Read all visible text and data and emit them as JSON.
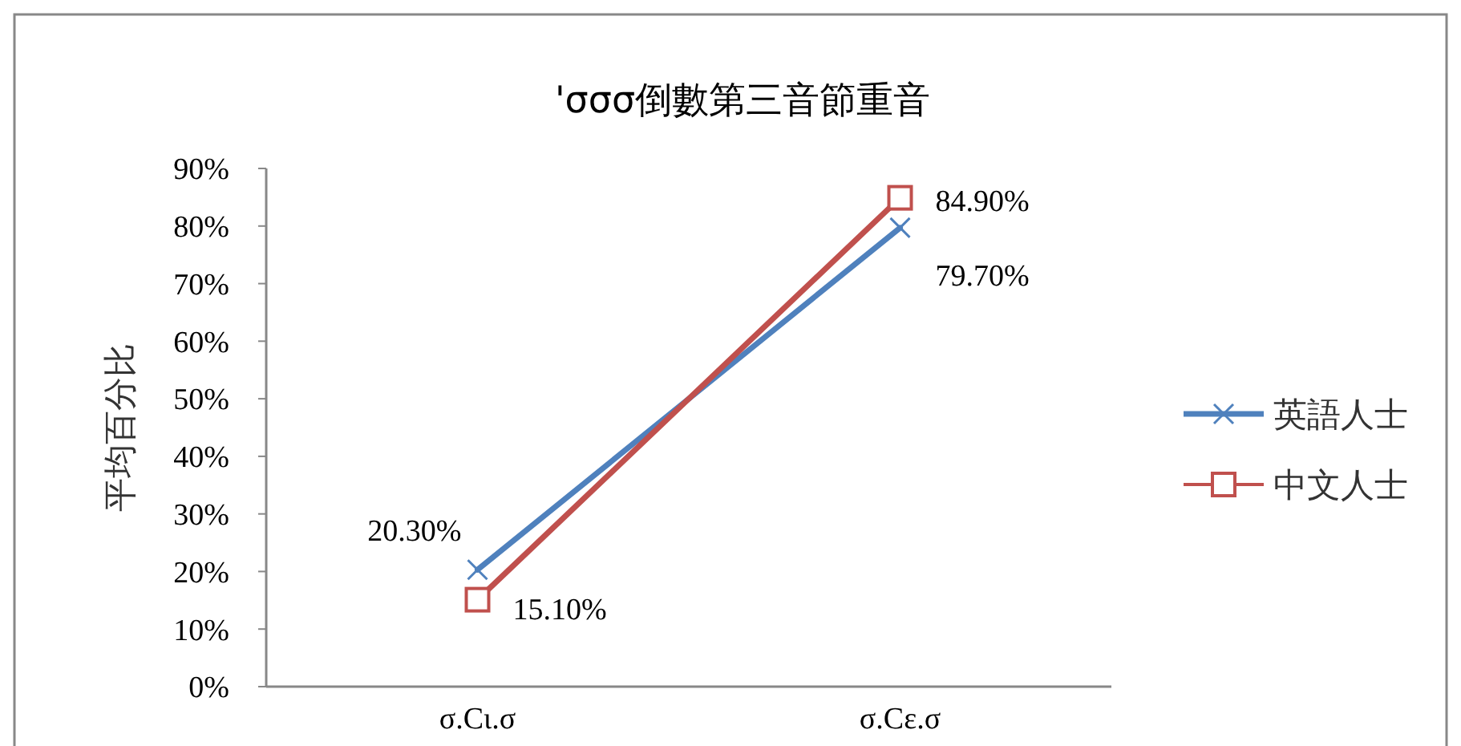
{
  "chart_data": {
    "type": "line",
    "title": "'σσσ倒數第三音節重音",
    "ylabel": "平均百分比",
    "categories": [
      "σ.Cι.σ",
      "σ.Cε.σ"
    ],
    "series": [
      {
        "name": "英語人士",
        "color": "#4f81bd",
        "marker": "cross",
        "values": [
          20.3,
          79.7
        ],
        "value_labels": [
          "20.30%",
          "79.70%"
        ]
      },
      {
        "name": "中文人士",
        "color": "#c0504d",
        "marker": "square",
        "values": [
          15.1,
          84.9
        ],
        "value_labels": [
          "15.10%",
          "84.90%"
        ]
      }
    ],
    "ylim": [
      0,
      90
    ],
    "yticks": [
      {
        "value": 0,
        "label": "0%"
      },
      {
        "value": 10,
        "label": "10%"
      },
      {
        "value": 20,
        "label": "20%"
      },
      {
        "value": 30,
        "label": "30%"
      },
      {
        "value": 40,
        "label": "40%"
      },
      {
        "value": 50,
        "label": "50%"
      },
      {
        "value": 60,
        "label": "60%"
      },
      {
        "value": 70,
        "label": "70%"
      },
      {
        "value": 80,
        "label": "80%"
      },
      {
        "value": 90,
        "label": "90%"
      }
    ],
    "grid": false,
    "legend": "right"
  }
}
